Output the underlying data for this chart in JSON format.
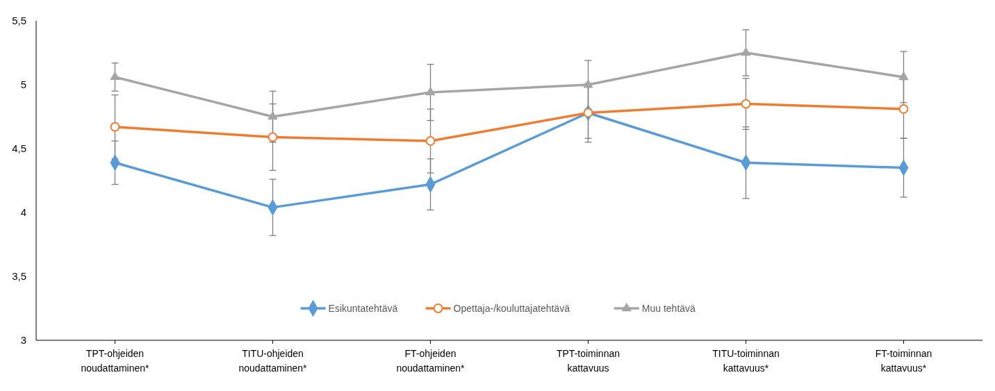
{
  "chart_data": {
    "type": "line",
    "categories": [
      "TPT-ohjeiden noudattaminen*",
      "TITU-ohjeiden noudattaminen*",
      "FT-ohjeiden noudattaminen*",
      "TPT-toiminnan kattavuus",
      "TITU-toiminnan kattavuus*",
      "FT-toiminnan kattavuus*"
    ],
    "series": [
      {
        "name": "Esikuntatehtävä",
        "color": "#5b9bd5",
        "marker": "diamond",
        "values": [
          4.39,
          4.04,
          4.22,
          4.78,
          4.39,
          4.35
        ],
        "errors": [
          0.17,
          0.22,
          0.2,
          0.23,
          0.28,
          0.23
        ]
      },
      {
        "name": "Opettaja-/kouluttajatehtävä",
        "color": "#ed7d31",
        "marker": "circle",
        "values": [
          4.67,
          4.59,
          4.56,
          4.78,
          4.85,
          4.81
        ],
        "errors": [
          0.25,
          0.26,
          0.25,
          0.2,
          0.2,
          0.23
        ]
      },
      {
        "name": "Muu tehtävä",
        "color": "#a5a5a5",
        "marker": "triangle",
        "values": [
          5.06,
          4.75,
          4.94,
          5.0,
          5.25,
          5.06
        ],
        "errors": [
          0.11,
          0.2,
          0.22,
          0.19,
          0.18,
          0.2
        ]
      }
    ],
    "ylim": [
      3,
      5.5
    ],
    "yticks": [
      3,
      {
        "value": 3.5,
        "label": "3,5"
      },
      4,
      {
        "value": 4.5,
        "label": "4,5"
      },
      5,
      {
        "value": 5.5,
        "label": "5,5"
      }
    ],
    "grid": false,
    "legend": "bottom",
    "line_style": "solid"
  }
}
